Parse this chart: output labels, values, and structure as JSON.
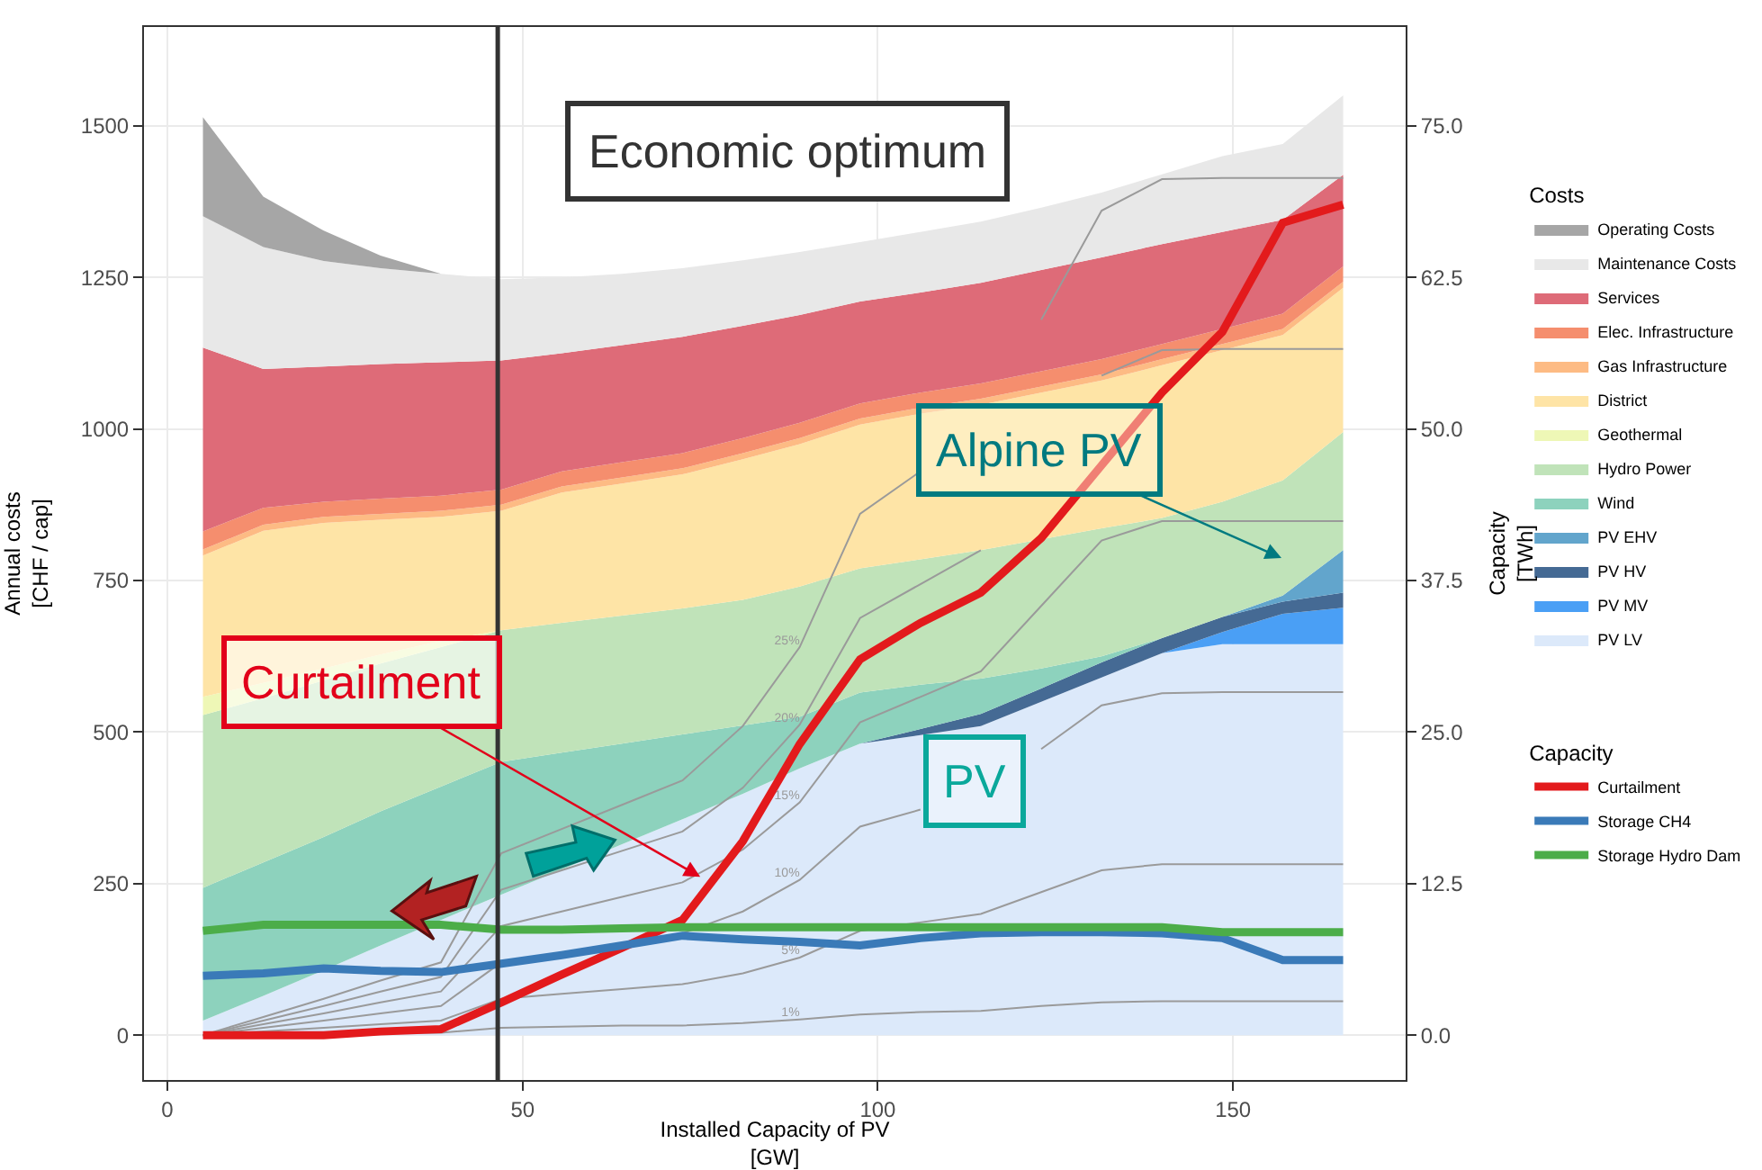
{
  "chart_data": {
    "type": "area",
    "stacked": true,
    "xlabel": "Installed Capacity of PV\n[GW]",
    "ylabel": "Annual costs\n[CHF / cap]",
    "y2label": "Capacity\n[TWh]",
    "legend_title": [
      "Costs",
      "Capacity"
    ],
    "legend": "right",
    "grid": true,
    "x": [
      5,
      13.5,
      22,
      30,
      38.5,
      47,
      55.5,
      64,
      72.5,
      81,
      89,
      97.5,
      106,
      114.5,
      123,
      131.5,
      140,
      148.5,
      157,
      165.5
    ],
    "xlim": [
      -3.3,
      174.3
    ],
    "xticks": [
      0,
      50,
      100,
      150
    ],
    "ylim": [
      -74,
      1663
    ],
    "yticks": [
      0,
      250,
      500,
      750,
      1000,
      1250,
      1500
    ],
    "y2lim": [
      -3.7,
      83.15
    ],
    "y2ticks": [
      {
        "value": 0,
        "label": "0.0"
      },
      {
        "value": 12.5,
        "label": "12.5"
      },
      {
        "value": 25,
        "label": "25.0"
      },
      {
        "value": 37.5,
        "label": "37.5"
      },
      {
        "value": 50,
        "label": "50.0"
      },
      {
        "value": 62.5,
        "label": "62.5"
      },
      {
        "value": 75,
        "label": "75.0"
      }
    ],
    "series": [
      {
        "name": "PV LV",
        "color": "#dce9fa",
        "values": [
          24,
          65,
          107,
          148,
          190,
          232,
          273,
          315,
          356,
          398,
          440,
          481,
          495,
          510,
          550,
          590,
          630,
          645,
          645,
          645
        ]
      },
      {
        "name": "PV MV",
        "color": "#4a9ff5",
        "values": [
          null,
          null,
          null,
          null,
          null,
          null,
          null,
          null,
          null,
          null,
          null,
          null,
          null,
          null,
          null,
          null,
          0,
          20,
          50,
          60
        ]
      },
      {
        "name": "PV HV",
        "color": "#456a94",
        "values": [
          null,
          null,
          null,
          null,
          null,
          null,
          null,
          null,
          null,
          null,
          null,
          0,
          10,
          20,
          22,
          25,
          25,
          25,
          20,
          25
        ]
      },
      {
        "name": "PV EHV",
        "color": "#62a5cc",
        "values": [
          null,
          null,
          null,
          null,
          null,
          null,
          null,
          null,
          null,
          null,
          null,
          null,
          null,
          null,
          null,
          null,
          null,
          0,
          10,
          70
        ]
      },
      {
        "name": "Wind",
        "color": "#8dd2bd",
        "values": [
          219,
          220,
          220,
          221,
          220,
          219,
          193,
          166,
          140,
          113,
          85,
          84,
          73,
          58,
          33,
          10,
          0,
          null,
          null,
          null
        ]
      },
      {
        "name": "Hydro Power",
        "color": "#c0e3b9",
        "values": [
          285,
          271,
          258,
          244,
          230,
          217,
          214,
          211,
          208,
          207,
          215,
          205,
          207,
          212,
          213,
          211,
          198,
          190,
          190,
          195
        ]
      },
      {
        "name": "Geothermal",
        "color": "#eef7b6",
        "values": [
          30,
          25,
          20,
          15,
          10,
          0,
          null,
          null,
          null,
          null,
          null,
          null,
          null,
          null,
          null,
          null,
          null,
          null,
          null,
          null
        ]
      },
      {
        "name": "District",
        "color": "#fee4a6",
        "values": [
          233,
          251,
          240,
          222,
          205,
          197,
          215,
          218,
          221,
          232,
          235,
          237,
          240,
          240,
          242,
          244,
          252,
          250,
          240,
          238
        ]
      },
      {
        "name": "Gas Infrastructure",
        "color": "#fdbb84",
        "values": [
          10,
          10,
          10,
          10,
          10,
          10,
          10,
          10,
          10,
          10,
          10,
          10,
          10,
          10,
          10,
          10,
          10,
          10,
          10,
          10
        ]
      },
      {
        "name": "Elec. Infrastructure",
        "color": "#f58e6e",
        "values": [
          30,
          28,
          25,
          25,
          25,
          25,
          25,
          25,
          25,
          25,
          25,
          25,
          25,
          25,
          25,
          25,
          25,
          25,
          25,
          25
        ]
      },
      {
        "name": "Services",
        "color": "#de6b78",
        "values": [
          303,
          229,
          223,
          222,
          220,
          213,
          195,
          193,
          192,
          185,
          178,
          168,
          165,
          166,
          167,
          168,
          165,
          160,
          155,
          151
        ]
      },
      {
        "name": "Maintenance Costs",
        "color": "#e8e8e8",
        "values": [
          217,
          201,
          174,
          158,
          146,
          134,
          125,
          118,
          113,
          108,
          104,
          98,
          100,
          101,
          103,
          107,
          115,
          125,
          125,
          131
        ]
      },
      {
        "name": "Operating Costs",
        "color": "#a6a6a6",
        "values": [
          163,
          83,
          50,
          21,
          0,
          null,
          null,
          null,
          null,
          null,
          null,
          null,
          null,
          null,
          null,
          null,
          null,
          null,
          null,
          null
        ]
      },
      {
        "name": "1%",
        "type": "line",
        "axis": "y2",
        "color": "#9a9a9a",
        "values": [
          0,
          0.1,
          0.1,
          0.2,
          0.2,
          0.6,
          0.7,
          0.8,
          0.8,
          1.0,
          1.3,
          1.7,
          1.9,
          2.0,
          2.4,
          2.7,
          2.8,
          2.8,
          2.8,
          2.8
        ]
      },
      {
        "name": "5%",
        "type": "line",
        "axis": "y2",
        "color": "#9a9a9a",
        "values": [
          0,
          0.3,
          0.6,
          0.9,
          1.2,
          3.0,
          3.4,
          3.8,
          4.2,
          5.1,
          6.4,
          8.6,
          9.3,
          10.0,
          11.8,
          13.6,
          14.1,
          14.1,
          14.1,
          14.1
        ]
      },
      {
        "name": "10%",
        "type": "line",
        "axis": "y2",
        "color": "#9a9a9a",
        "values": [
          0,
          0.6,
          1.2,
          1.8,
          2.4,
          6.0,
          6.8,
          7.6,
          8.4,
          10.2,
          12.8,
          17.2,
          18.6,
          null,
          23.6,
          27.2,
          28.2,
          28.3,
          28.3,
          28.3
        ]
      },
      {
        "name": "15%",
        "type": "line",
        "axis": "y2",
        "color": "#9a9a9a",
        "values": [
          0,
          0.9,
          1.8,
          2.7,
          3.6,
          9.0,
          10.2,
          11.4,
          12.6,
          15.3,
          19.2,
          25.8,
          27.9,
          30.0,
          35.4,
          40.8,
          42.4,
          42.4,
          42.4,
          42.4
        ]
      },
      {
        "name": "20%",
        "type": "line",
        "axis": "y2",
        "color": "#9a9a9a",
        "values": [
          0,
          1.2,
          2.4,
          3.6,
          4.8,
          12.0,
          13.6,
          15.2,
          16.8,
          20.4,
          25.6,
          34.4,
          37.2,
          40.0,
          null,
          54.4,
          56.5,
          56.6,
          56.6,
          56.6
        ]
      },
      {
        "name": "25%",
        "type": "line",
        "axis": "y2",
        "color": "#9a9a9a",
        "values": [
          0,
          1.5,
          3.0,
          4.5,
          6.0,
          15.0,
          17.0,
          19.0,
          21.0,
          25.5,
          32.0,
          43.0,
          46.5,
          null,
          59.0,
          68.0,
          70.6,
          70.7,
          70.7,
          70.7
        ]
      },
      {
        "name": "Curtailment",
        "type": "line",
        "axis": "y2",
        "color": "#e31a1c",
        "values": [
          0,
          0,
          0,
          0.3,
          0.5,
          2.7,
          5.0,
          7.2,
          9.5,
          16.0,
          24.0,
          31.0,
          34.0,
          36.5,
          41.0,
          47.0,
          53.0,
          58.0,
          67.0,
          68.5
        ]
      },
      {
        "name": "Storage CH4",
        "type": "line",
        "axis": "y2",
        "color": "#3a7ab8",
        "values": [
          4.9,
          5.1,
          5.5,
          5.3,
          5.2,
          5.9,
          6.6,
          7.4,
          8.2,
          7.9,
          7.7,
          7.4,
          8.0,
          8.4,
          8.5,
          8.5,
          8.4,
          8.0,
          6.2,
          6.2
        ]
      },
      {
        "name": "Storage Hydro Dam",
        "type": "line",
        "axis": "y2",
        "color": "#4cad49",
        "values": [
          8.6,
          9.1,
          9.1,
          9.1,
          9.1,
          8.7,
          8.7,
          8.8,
          8.9,
          8.9,
          8.9,
          8.9,
          8.9,
          8.9,
          8.9,
          8.9,
          8.9,
          8.5,
          8.5,
          8.5
        ]
      }
    ],
    "ref_lines": [
      {
        "axis": "x",
        "value": 46.5,
        "label": "Economic optimum",
        "color": "#333333"
      }
    ],
    "annotations": [
      {
        "text": "Curtailment",
        "x": 75,
        "y": 261
      },
      "Alpine PV",
      "PV"
    ]
  }
}
